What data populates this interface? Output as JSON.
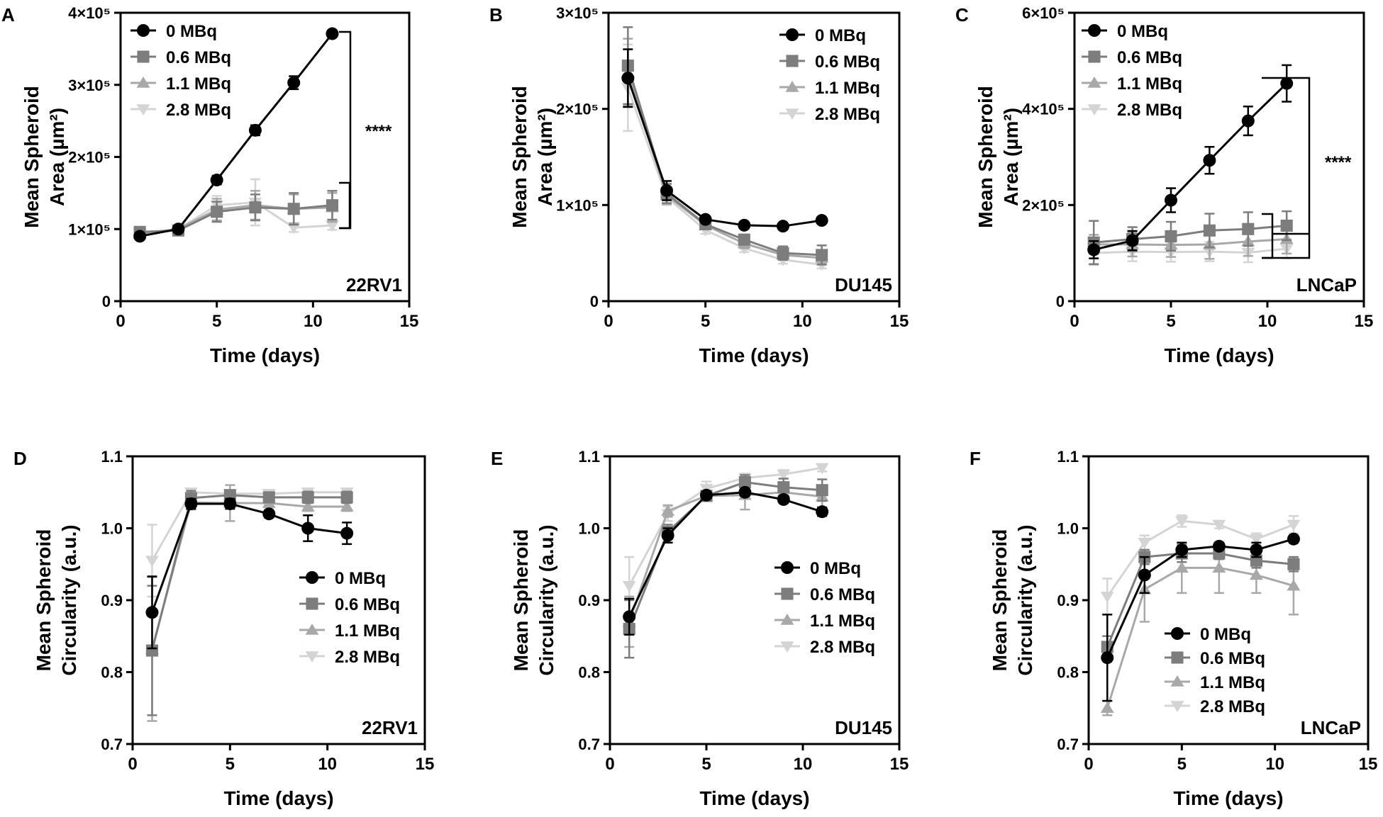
{
  "colors": {
    "0": "#000000",
    "1": "#7d7d7d",
    "2": "#a8a8a8",
    "3": "#d4d4d4"
  },
  "chart_data": [
    {
      "panel": "A",
      "type": "line",
      "cell": "22RV1",
      "xlabel": "Time (days)",
      "ylabel_lines": [
        "Mean Spheroid",
        "Area (µm²)"
      ],
      "xlim": [
        0,
        15
      ],
      "xticks": [
        "0",
        "5",
        "10",
        "15"
      ],
      "ylim": [
        0,
        400000
      ],
      "yticks": [
        {
          "v": 0,
          "label": "0"
        },
        {
          "v": 100000,
          "label": "1×10⁵"
        },
        {
          "v": 200000,
          "label": "2×10⁵"
        },
        {
          "v": 300000,
          "label": "3×10⁵"
        },
        {
          "v": 400000,
          "label": "4×10⁵"
        }
      ],
      "legend_position": "top-left",
      "significance": "****",
      "x": [
        1,
        3,
        5,
        7,
        9,
        11
      ],
      "series": [
        {
          "name": "0 MBq",
          "marker": "circle",
          "values": [
            90000,
            100000,
            168000,
            237000,
            303000,
            371000
          ],
          "errors": [
            4000,
            4000,
            6000,
            7000,
            9000,
            4000
          ]
        },
        {
          "name": "0.6 MBq",
          "marker": "square",
          "values": [
            96000,
            98000,
            124000,
            130000,
            128000,
            133000
          ],
          "errors": [
            6000,
            5000,
            14000,
            18000,
            22000,
            20000
          ]
        },
        {
          "name": "1.1 MBq",
          "marker": "triangle-up",
          "values": [
            93000,
            100000,
            127000,
            133000,
            128000,
            130000
          ],
          "errors": [
            5000,
            5000,
            15000,
            20000,
            20000,
            20000
          ]
        },
        {
          "name": "2.8 MBq",
          "marker": "triangle-down",
          "values": [
            94000,
            100000,
            133000,
            137000,
            102000,
            105000
          ],
          "errors": [
            5000,
            5000,
            13000,
            32000,
            6000,
            6000
          ]
        }
      ]
    },
    {
      "panel": "B",
      "type": "line",
      "cell": "DU145",
      "xlabel": "Time (days)",
      "ylabel_lines": [
        "Mean Spheroid",
        "Area (µm²)"
      ],
      "xlim": [
        0,
        15
      ],
      "xticks": [
        "0",
        "5",
        "10",
        "15"
      ],
      "ylim": [
        0,
        300000
      ],
      "yticks": [
        {
          "v": 0,
          "label": "0"
        },
        {
          "v": 100000,
          "label": "1×10⁵"
        },
        {
          "v": 200000,
          "label": "2×10⁵"
        },
        {
          "v": 300000,
          "label": "3×10⁵"
        }
      ],
      "legend_position": "top-right",
      "significance": "",
      "x": [
        1,
        3,
        5,
        7,
        9,
        11
      ],
      "series": [
        {
          "name": "0 MBq",
          "marker": "circle",
          "values": [
            232000,
            115000,
            85000,
            79000,
            78000,
            84000
          ],
          "errors": [
            30000,
            10000,
            3000,
            2000,
            2000,
            2000
          ]
        },
        {
          "name": "0.6 MBq",
          "marker": "square",
          "values": [
            245000,
            112000,
            80000,
            64000,
            50000,
            48000
          ],
          "errors": [
            40000,
            10000,
            4000,
            5000,
            7000,
            10000
          ]
        },
        {
          "name": "1.1 MBq",
          "marker": "triangle-up",
          "values": [
            238000,
            110000,
            79000,
            60000,
            48000,
            45000
          ],
          "errors": [
            35000,
            9000,
            4000,
            5000,
            5000,
            6000
          ]
        },
        {
          "name": "2.8 MBq",
          "marker": "triangle-down",
          "values": [
            222000,
            108000,
            74000,
            55000,
            43000,
            38000
          ],
          "errors": [
            45000,
            8000,
            4000,
            4000,
            4000,
            4000
          ]
        }
      ]
    },
    {
      "panel": "C",
      "type": "line",
      "cell": "LNCaP",
      "xlabel": "Time (days)",
      "ylabel_lines": [
        "Mean Spheroid",
        "Area (µm²)"
      ],
      "xlim": [
        0,
        15
      ],
      "xticks": [
        "0",
        "5",
        "10",
        "15"
      ],
      "ylim": [
        0,
        600000
      ],
      "yticks": [
        {
          "v": 0,
          "label": "0"
        },
        {
          "v": 200000,
          "label": "2×10⁵"
        },
        {
          "v": 400000,
          "label": "4×10⁵"
        },
        {
          "v": 600000,
          "label": "6×10⁵"
        }
      ],
      "legend_position": "top-left",
      "significance": "****",
      "x": [
        1,
        3,
        5,
        7,
        9,
        11
      ],
      "series": [
        {
          "name": "0 MBq",
          "marker": "circle",
          "values": [
            107000,
            126000,
            210000,
            293000,
            375000,
            453000
          ],
          "errors": [
            18000,
            20000,
            25000,
            28000,
            30000,
            38000
          ]
        },
        {
          "name": "0.6 MBq",
          "marker": "square",
          "values": [
            122000,
            129000,
            135000,
            147000,
            150000,
            157000
          ],
          "errors": [
            45000,
            25000,
            30000,
            35000,
            35000,
            30000
          ]
        },
        {
          "name": "1.1 MBq",
          "marker": "triangle-up",
          "values": [
            118000,
            118000,
            117000,
            118000,
            124000,
            129000
          ],
          "errors": [
            20000,
            25000,
            25000,
            30000,
            30000,
            30000
          ]
        },
        {
          "name": "2.8 MBq",
          "marker": "triangle-down",
          "values": [
            100000,
            103000,
            102000,
            103000,
            101000,
            109000
          ],
          "errors": [
            25000,
            20000,
            20000,
            20000,
            20000,
            20000
          ]
        }
      ]
    },
    {
      "panel": "D",
      "type": "line",
      "cell": "22RV1",
      "xlabel": "Time (days)",
      "ylabel_lines": [
        "Mean Spheroid",
        "Circularity (a.u.)"
      ],
      "xlim": [
        0,
        15
      ],
      "xticks": [
        "0",
        "5",
        "10",
        "15"
      ],
      "ylim": [
        0.7,
        1.1
      ],
      "yticks": [
        {
          "v": 0.7,
          "label": "0.7"
        },
        {
          "v": 0.8,
          "label": "0.8"
        },
        {
          "v": 0.9,
          "label": "0.9"
        },
        {
          "v": 1.0,
          "label": "1.0"
        },
        {
          "v": 1.1,
          "label": "1.1"
        }
      ],
      "legend_position": "bottom-right",
      "significance": "",
      "x": [
        1,
        3,
        5,
        7,
        9,
        11
      ],
      "series": [
        {
          "name": "0 MBq",
          "marker": "circle",
          "values": [
            0.883,
            1.034,
            1.034,
            1.02,
            1.0,
            0.993
          ],
          "errors": [
            0.05,
            0.007,
            0.007,
            0.005,
            0.018,
            0.015
          ]
        },
        {
          "name": "0.6 MBq",
          "marker": "square",
          "values": [
            0.83,
            1.042,
            1.046,
            1.043,
            1.043,
            1.043
          ],
          "errors": [
            0.09,
            0.01,
            0.006,
            0.006,
            0.008,
            0.008
          ]
        },
        {
          "name": "1.1 MBq",
          "marker": "triangle-up",
          "values": [
            0.832,
            1.036,
            1.035,
            1.035,
            1.03,
            1.03
          ],
          "errors": [
            0.1,
            0.01,
            0.025,
            0.006,
            0.006,
            0.006
          ]
        },
        {
          "name": "2.8 MBq",
          "marker": "triangle-down",
          "values": [
            0.955,
            1.05,
            1.048,
            1.048,
            1.05,
            1.05
          ],
          "errors": [
            0.05,
            0.005,
            0.005,
            0.005,
            0.005,
            0.005
          ]
        }
      ]
    },
    {
      "panel": "E",
      "type": "line",
      "cell": "DU145",
      "xlabel": "Time (days)",
      "ylabel_lines": [
        "Mean Spheroid",
        "Circularity (a.u.)"
      ],
      "xlim": [
        0,
        15
      ],
      "xticks": [
        "0",
        "5",
        "10",
        "15"
      ],
      "ylim": [
        0.7,
        1.1
      ],
      "yticks": [
        {
          "v": 0.7,
          "label": "0.7"
        },
        {
          "v": 0.8,
          "label": "0.8"
        },
        {
          "v": 0.9,
          "label": "0.9"
        },
        {
          "v": 1.0,
          "label": "1.0"
        },
        {
          "v": 1.1,
          "label": "1.1"
        }
      ],
      "legend_position": "center-right",
      "significance": "",
      "x": [
        1,
        3,
        5,
        7,
        9,
        11
      ],
      "series": [
        {
          "name": "0 MBq",
          "marker": "circle",
          "values": [
            0.877,
            0.99,
            1.046,
            1.05,
            1.04,
            1.023
          ],
          "errors": [
            0.025,
            0.01,
            0.005,
            0.005,
            0.005,
            0.006
          ]
        },
        {
          "name": "0.6 MBq",
          "marker": "square",
          "values": [
            0.86,
            0.995,
            1.045,
            1.064,
            1.057,
            1.053
          ],
          "errors": [
            0.04,
            0.01,
            0.007,
            0.01,
            0.012,
            0.015
          ]
        },
        {
          "name": "1.1 MBq",
          "marker": "triangle-up",
          "values": [
            0.87,
            1.024,
            1.045,
            1.046,
            1.05,
            1.044
          ],
          "errors": [
            0.035,
            0.008,
            0.006,
            0.02,
            0.01,
            0.015
          ]
        },
        {
          "name": "2.8 MBq",
          "marker": "triangle-down",
          "values": [
            0.92,
            1.02,
            1.055,
            1.07,
            1.075,
            1.084
          ],
          "errors": [
            0.04,
            0.01,
            0.01,
            0.006,
            0.006,
            0.005
          ]
        }
      ]
    },
    {
      "panel": "F",
      "type": "line",
      "cell": "LNCaP",
      "xlabel": "Time (days)",
      "ylabel_lines": [
        "Mean Spheroid",
        "Circularity (a.u.)"
      ],
      "xlim": [
        0,
        15
      ],
      "xticks": [
        "0",
        "5",
        "10",
        "15"
      ],
      "ylim": [
        0.7,
        1.1
      ],
      "yticks": [
        {
          "v": 0.7,
          "label": "0.7"
        },
        {
          "v": 0.8,
          "label": "0.8"
        },
        {
          "v": 0.9,
          "label": "0.9"
        },
        {
          "v": 1.0,
          "label": "1.0"
        },
        {
          "v": 1.1,
          "label": "1.1"
        }
      ],
      "legend_position": "bottom-left",
      "significance": "",
      "x": [
        1,
        3,
        5,
        7,
        9,
        11
      ],
      "series": [
        {
          "name": "0 MBq",
          "marker": "circle",
          "values": [
            0.82,
            0.935,
            0.97,
            0.975,
            0.97,
            0.985
          ],
          "errors": [
            0.06,
            0.025,
            0.01,
            0.005,
            0.01,
            0.005
          ]
        },
        {
          "name": "0.6 MBq",
          "marker": "square",
          "values": [
            0.835,
            0.96,
            0.965,
            0.965,
            0.955,
            0.95
          ],
          "errors": [
            0.015,
            0.01,
            0.012,
            0.008,
            0.01,
            0.01
          ]
        },
        {
          "name": "1.1 MBq",
          "marker": "triangle-up",
          "values": [
            0.75,
            0.915,
            0.945,
            0.945,
            0.935,
            0.92
          ],
          "errors": [
            0.01,
            0.045,
            0.035,
            0.035,
            0.025,
            0.04
          ]
        },
        {
          "name": "2.8 MBq",
          "marker": "triangle-down",
          "values": [
            0.905,
            0.98,
            1.01,
            1.005,
            0.985,
            1.005
          ],
          "errors": [
            0.025,
            0.01,
            0.008,
            0.005,
            0.008,
            0.012
          ]
        }
      ]
    }
  ]
}
